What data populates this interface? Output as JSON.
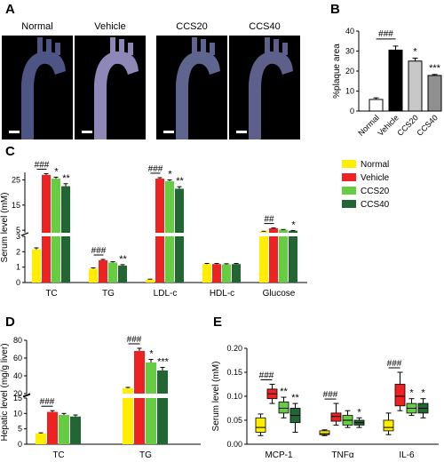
{
  "panels": {
    "a": "A",
    "b": "B",
    "c": "C",
    "d": "D",
    "e": "E"
  },
  "photos": {
    "labels": [
      "Normal",
      "Vehicle",
      "CCS20",
      "CCS40"
    ],
    "colors": [
      "#4e5484",
      "#8d88b8",
      "#5e6690",
      "#5e5f8a"
    ]
  },
  "chart_data": [
    {
      "id": "B",
      "type": "bar",
      "ylabel": "%plaque area",
      "ylim": [
        0,
        40
      ],
      "yticks": [
        0,
        10,
        20,
        30,
        40
      ],
      "categories": [
        "Normal",
        "Vehicle",
        "CCS20",
        "CCS40"
      ],
      "values": [
        5.8,
        30.5,
        25.0,
        17.8
      ],
      "errors": [
        0.8,
        2.0,
        1.5,
        0.5
      ],
      "colors": [
        "#ffffff",
        "#000000",
        "#c8c8c8",
        "#909090"
      ],
      "annotations": [
        {
          "text": "###",
          "from": 0,
          "to": 1
        },
        {
          "text": "*",
          "at": 2
        },
        {
          "text": "***",
          "at": 3
        }
      ]
    },
    {
      "id": "C",
      "type": "bar",
      "ylabel": "Serum level (mM)",
      "categories": [
        "TC",
        "TG",
        "LDL-c",
        "HDL-c",
        "Glucose"
      ],
      "legend": [
        "Normal",
        "Vehicle",
        "CCS20",
        "CCS40"
      ],
      "colors": [
        "#ffee00",
        "#ee2222",
        "#66cc44",
        "#226633"
      ],
      "yticks_low": [
        0,
        1,
        2,
        3
      ],
      "yticks_high": [
        5,
        15,
        25
      ],
      "series": [
        {
          "name": "Normal",
          "values": [
            2.15,
            0.9,
            0.2,
            1.2,
            4.5
          ],
          "errors": [
            0.1,
            0.05,
            0.02,
            0.04,
            0.1
          ]
        },
        {
          "name": "Vehicle",
          "values": [
            27.0,
            1.45,
            25.5,
            1.2,
            5.8
          ],
          "errors": [
            0.5,
            0.05,
            0.4,
            0.04,
            0.1
          ]
        },
        {
          "name": "CCS20",
          "values": [
            25.5,
            1.3,
            24.5,
            1.18,
            5.2
          ],
          "errors": [
            0.6,
            0.05,
            0.5,
            0.04,
            0.1
          ]
        },
        {
          "name": "CCS40",
          "values": [
            22.5,
            1.1,
            21.5,
            1.2,
            4.8
          ],
          "errors": [
            1.0,
            0.06,
            0.8,
            0.04,
            0.1
          ]
        }
      ],
      "annotations": [
        {
          "group": 0,
          "texts": [
            "###",
            "*",
            "**"
          ]
        },
        {
          "group": 1,
          "texts": [
            "###",
            "",
            "**"
          ]
        },
        {
          "group": 2,
          "texts": [
            "###",
            "*",
            "**"
          ]
        },
        {
          "group": 4,
          "texts": [
            "##",
            "",
            "*"
          ]
        }
      ]
    },
    {
      "id": "D",
      "type": "bar",
      "ylabel": "Hepatic level (mg/g liver)",
      "categories": [
        "TC",
        "TG"
      ],
      "colors": [
        "#ffee00",
        "#ee2222",
        "#66cc44",
        "#226633"
      ],
      "yticks_low": [
        0,
        5,
        10,
        15
      ],
      "yticks_high": [
        20,
        40,
        60,
        80
      ],
      "series": [
        {
          "name": "Normal",
          "values": [
            3.5,
            26.0
          ],
          "errors": [
            0.2,
            1.0
          ]
        },
        {
          "name": "Vehicle",
          "values": [
            10.5,
            68.0
          ],
          "errors": [
            0.4,
            3.0
          ]
        },
        {
          "name": "CCS20",
          "values": [
            9.5,
            55.0
          ],
          "errors": [
            0.5,
            3.5
          ]
        },
        {
          "name": "CCS40",
          "values": [
            9.0,
            46.0
          ],
          "errors": [
            0.5,
            3.5
          ]
        }
      ],
      "annotations": [
        {
          "group": 0,
          "texts": [
            "###",
            "",
            ""
          ]
        },
        {
          "group": 1,
          "texts": [
            "###",
            "*",
            "***"
          ]
        }
      ]
    },
    {
      "id": "E",
      "type": "box",
      "ylabel": "Serum level (mM)",
      "ylim": [
        0,
        0.2
      ],
      "yticks": [
        "0.00",
        "0.05",
        "0.10",
        "0.15",
        "0.20"
      ],
      "categories": [
        "MCP-1",
        "TNFα",
        "IL-6"
      ],
      "colors": [
        "#ffee00",
        "#ee2222",
        "#66cc44",
        "#226633"
      ],
      "boxes": [
        [
          {
            "min": 0.018,
            "q1": 0.025,
            "median": 0.035,
            "q3": 0.055,
            "max": 0.063
          },
          {
            "min": 0.085,
            "q1": 0.095,
            "median": 0.105,
            "q3": 0.115,
            "max": 0.125
          },
          {
            "min": 0.055,
            "q1": 0.065,
            "median": 0.075,
            "q3": 0.088,
            "max": 0.098
          },
          {
            "min": 0.025,
            "q1": 0.045,
            "median": 0.06,
            "q3": 0.075,
            "max": 0.085
          }
        ],
        [
          {
            "min": 0.018,
            "q1": 0.02,
            "median": 0.022,
            "q3": 0.028,
            "max": 0.03
          },
          {
            "min": 0.04,
            "q1": 0.048,
            "median": 0.058,
            "q3": 0.065,
            "max": 0.085
          },
          {
            "min": 0.035,
            "q1": 0.04,
            "median": 0.05,
            "q3": 0.06,
            "max": 0.07
          },
          {
            "min": 0.035,
            "q1": 0.04,
            "median": 0.045,
            "q3": 0.05,
            "max": 0.055
          }
        ],
        [
          {
            "min": 0.02,
            "q1": 0.028,
            "median": 0.035,
            "q3": 0.05,
            "max": 0.065
          },
          {
            "min": 0.07,
            "q1": 0.08,
            "median": 0.1,
            "q3": 0.125,
            "max": 0.15
          },
          {
            "min": 0.06,
            "q1": 0.065,
            "median": 0.075,
            "q3": 0.085,
            "max": 0.095
          },
          {
            "min": 0.055,
            "q1": 0.065,
            "median": 0.075,
            "q3": 0.085,
            "max": 0.095
          }
        ]
      ],
      "annotations": [
        {
          "group": 0,
          "texts": [
            "###",
            "**",
            "**"
          ]
        },
        {
          "group": 1,
          "texts": [
            "###",
            "",
            "*"
          ]
        },
        {
          "group": 2,
          "texts": [
            "###",
            "*",
            "*"
          ]
        }
      ]
    }
  ]
}
